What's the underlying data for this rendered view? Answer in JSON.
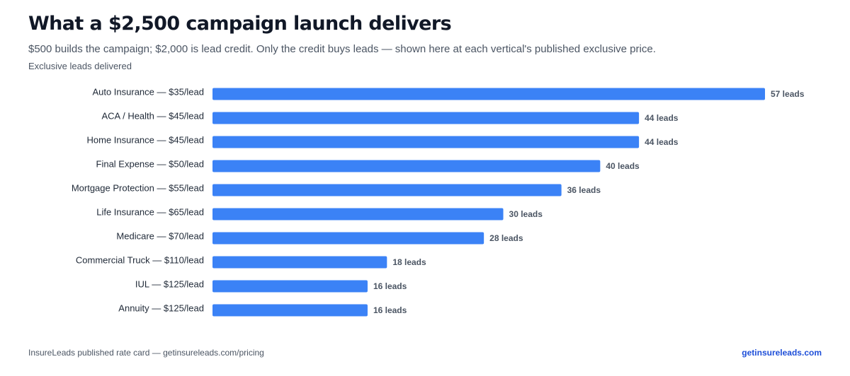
{
  "title": "What a $2,500 campaign launch delivers",
  "subtitle": "$500 builds the campaign; $2,000 is lead credit. Only the credit buys leads — shown here at each vertical's published exclusive price.",
  "chart_data": {
    "type": "bar",
    "orientation": "horizontal",
    "title": "What a $2,500 campaign launch delivers",
    "subtitle": "$500 builds the campaign; $2,000 is lead credit. Only the credit buys leads — shown here at each vertical's published exclusive price.",
    "xlabel": "Exclusive leads delivered",
    "ylabel": "",
    "xlim": [
      0,
      57
    ],
    "grid": false,
    "legend": "none",
    "bar_color": "#3b82f6",
    "value_suffix": " leads",
    "categories": [
      "Auto Insurance — $35/lead",
      "ACA / Health — $45/lead",
      "Home Insurance — $45/lead",
      "Final Expense — $50/lead",
      "Mortgage Protection — $55/lead",
      "Life Insurance — $65/lead",
      "Medicare — $70/lead",
      "Commercial Truck — $110/lead",
      "IUL — $125/lead",
      "Annuity — $125/lead"
    ],
    "values": [
      57,
      44,
      44,
      40,
      36,
      30,
      28,
      18,
      16,
      16
    ]
  },
  "footer": {
    "source": "InsureLeads published rate card — getinsureleads.com/pricing",
    "link": "getinsureleads.com"
  },
  "colors": {
    "accent": "#3b82f6",
    "title": "#111827",
    "muted": "#4b5563",
    "link": "#1d4ed8"
  }
}
